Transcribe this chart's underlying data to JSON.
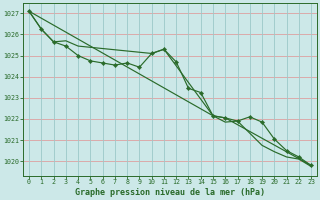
{
  "title": "Graphe pression niveau de la mer (hPa)",
  "bg_color": "#cce8e8",
  "plot_bg_color": "#cce8e8",
  "grid_color_h": "#e8b0b0",
  "grid_color_v": "#b8d8d8",
  "line_color": "#2a6b2a",
  "xlim": [
    -0.5,
    23.5
  ],
  "ylim": [
    1019.3,
    1027.5
  ],
  "x_ticks": [
    0,
    1,
    2,
    3,
    4,
    5,
    6,
    7,
    8,
    9,
    10,
    11,
    12,
    13,
    14,
    15,
    16,
    17,
    18,
    19,
    20,
    21,
    22,
    23
  ],
  "y_ticks": [
    1020,
    1021,
    1022,
    1023,
    1024,
    1025,
    1026,
    1027
  ],
  "line_main_x": [
    0,
    1,
    2,
    3,
    4,
    5,
    6,
    7,
    8,
    9,
    10,
    11,
    12,
    13,
    14,
    15,
    16,
    17,
    18,
    19,
    20,
    21,
    22,
    23
  ],
  "line_main_y": [
    1027.1,
    1026.25,
    1025.65,
    1025.45,
    1025.0,
    1024.75,
    1024.65,
    1024.55,
    1024.65,
    1024.45,
    1025.1,
    1025.3,
    1024.7,
    1023.45,
    1023.25,
    1022.15,
    1022.05,
    1021.9,
    1022.1,
    1021.85,
    1021.05,
    1020.5,
    1020.2,
    1019.8
  ],
  "line_upper_x": [
    0,
    1,
    2,
    3,
    4,
    10,
    11,
    15,
    16,
    23
  ],
  "line_upper_y": [
    1027.1,
    1026.25,
    1025.65,
    1025.7,
    1025.45,
    1025.1,
    1025.3,
    1022.15,
    1022.05,
    1019.8
  ],
  "line_lower_x": [
    0,
    15,
    16,
    17,
    19,
    20,
    21,
    22,
    23
  ],
  "line_lower_y": [
    1027.1,
    1022.15,
    1021.85,
    1021.9,
    1020.75,
    1020.45,
    1020.2,
    1020.1,
    1019.75
  ]
}
